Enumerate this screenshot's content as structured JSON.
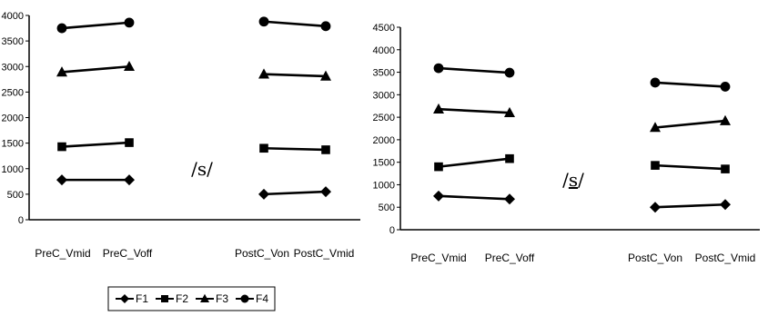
{
  "chart_data": [
    {
      "type": "line",
      "ylim": [
        0,
        4000
      ],
      "yticks": [
        "0",
        "500",
        "1000",
        "1500",
        "2000",
        "2500",
        "3000",
        "3500",
        "4000"
      ],
      "categories": [
        "PreC_Vmid",
        "PreC_Voff",
        "PostC_Von",
        "PostC_Vmid"
      ],
      "middle_label": "/s/",
      "series": [
        {
          "name": "F1",
          "values": [
            780,
            780,
            500,
            550
          ]
        },
        {
          "name": "F2",
          "values": [
            1430,
            1510,
            1400,
            1370
          ]
        },
        {
          "name": "F3",
          "values": [
            2890,
            3000,
            2850,
            2810
          ]
        },
        {
          "name": "F4",
          "values": [
            3750,
            3860,
            3880,
            3790
          ]
        }
      ],
      "legend": {
        "position": "bottom",
        "entries": [
          "F1",
          "F2",
          "F3",
          "F4"
        ]
      }
    },
    {
      "type": "line",
      "ylim": [
        0,
        4500
      ],
      "yticks": [
        "0",
        "500",
        "1000",
        "1500",
        "2000",
        "2500",
        "3000",
        "3500",
        "4000",
        "4500"
      ],
      "categories": [
        "PreC_Vmid",
        "PreC_Voff",
        "PostC_Von",
        "PostC_Vmid"
      ],
      "middle_label": "/s/",
      "series": [
        {
          "name": "F1",
          "values": [
            750,
            680,
            500,
            560
          ]
        },
        {
          "name": "F2",
          "values": [
            1400,
            1580,
            1430,
            1350
          ]
        },
        {
          "name": "F3",
          "values": [
            2680,
            2600,
            2270,
            2420
          ]
        },
        {
          "name": "F4",
          "values": [
            3590,
            3490,
            3270,
            3180
          ]
        }
      ]
    }
  ],
  "markers": {
    "F1": "diamond",
    "F2": "square",
    "F3": "triangle",
    "F4": "circle"
  },
  "colors": {
    "ink": "#000000",
    "background": "#ffffff"
  }
}
